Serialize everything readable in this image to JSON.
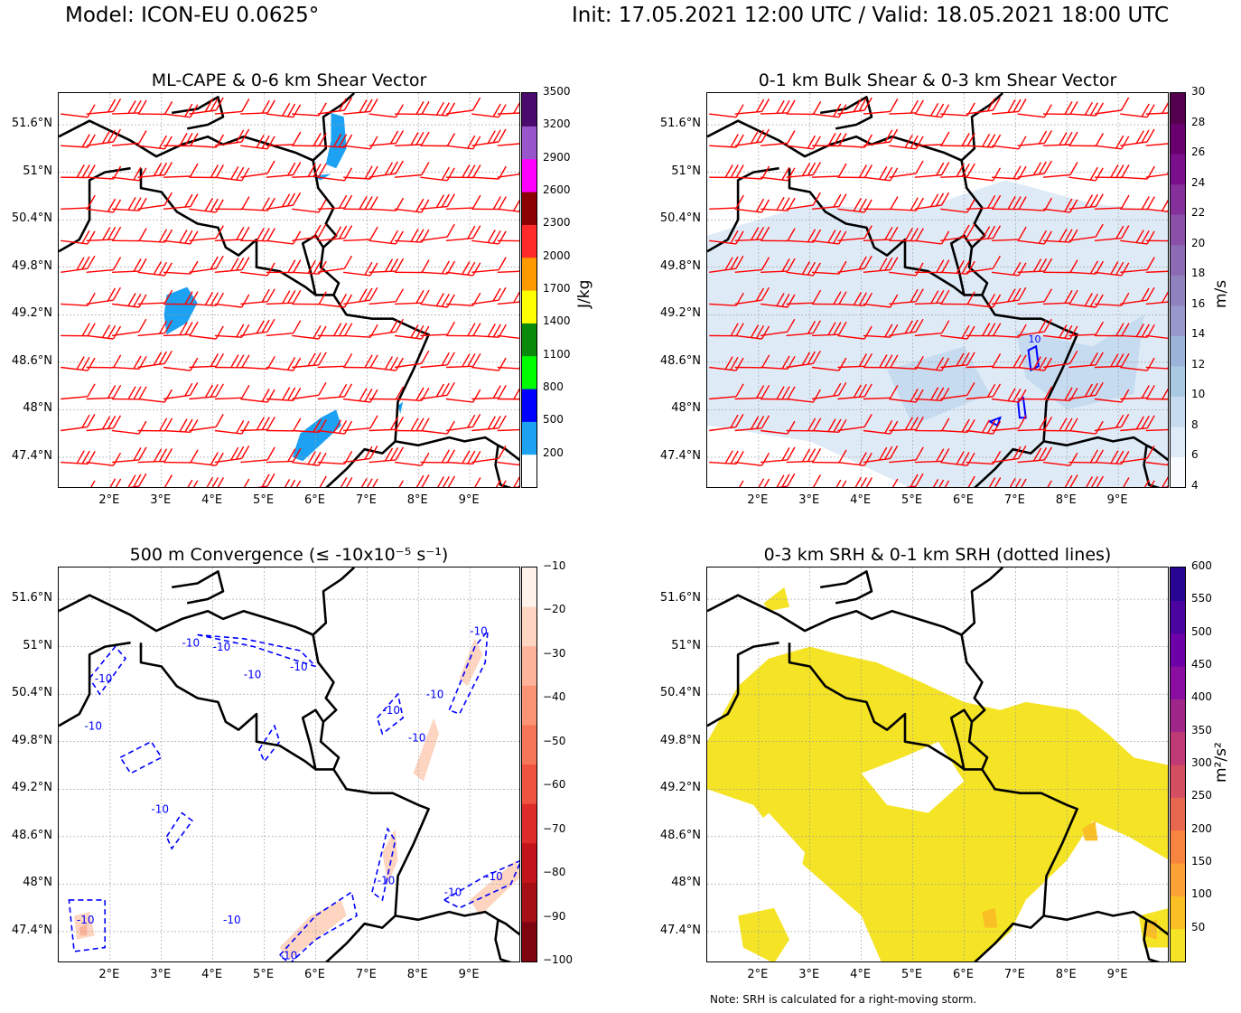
{
  "header": {
    "model": "Model: ICON-EU 0.0625°",
    "init_valid": "Init: 17.05.2021 12:00 UTC / Valid: 18.05.2021 18:00 UTC"
  },
  "note": "Note: SRH is calculated for a right-moving storm.",
  "chart_data": [
    {
      "type": "map",
      "title": "ML-CAPE & 0-6 km Shear Vector",
      "x_ticks": [
        "2°E",
        "3°E",
        "4°E",
        "5°E",
        "6°E",
        "7°E",
        "8°E",
        "9°E"
      ],
      "y_ticks": [
        "51.6°N",
        "51°N",
        "50.4°N",
        "49.8°N",
        "49.2°N",
        "48.6°N",
        "48°N",
        "47.4°N"
      ],
      "colorbar": {
        "label": "J/kg",
        "ticks": [
          "3500",
          "3200",
          "2900",
          "2600",
          "2300",
          "2000",
          "1700",
          "1400",
          "1100",
          "800",
          "500",
          "200"
        ],
        "colors": [
          "#ffffff",
          "#1da1f2",
          "#0000ff",
          "#00ff00",
          "#0a8a0a",
          "#ffff00",
          "#ff9900",
          "#ff2a2a",
          "#8b0000",
          "#ff00ff",
          "#9955cc",
          "#4b0a6e"
        ]
      },
      "overlay": "red wind barbs (0-6 km shear vector); light-blue CAPE areas 200-500 J/kg"
    },
    {
      "type": "map",
      "title": "0-1 km Bulk Shear & 0-3 km Shear Vector",
      "x_ticks": [
        "2°E",
        "3°E",
        "4°E",
        "5°E",
        "6°E",
        "7°E",
        "8°E",
        "9°E"
      ],
      "y_ticks": [
        "51.6°N",
        "51°N",
        "50.4°N",
        "49.8°N",
        "49.2°N",
        "48.6°N",
        "48°N",
        "47.4°N"
      ],
      "colorbar": {
        "label": "m/s",
        "ticks": [
          "30",
          "28",
          "26",
          "24",
          "22",
          "20",
          "18",
          "16",
          "14",
          "12",
          "10",
          "8",
          "6",
          "4"
        ],
        "colors": [
          "#f7fbff",
          "#deebf7",
          "#c6dbef",
          "#a9c8e2",
          "#9bb3d8",
          "#9898cc",
          "#8f82bf",
          "#8d6bb4",
          "#8a50a8",
          "#86309c",
          "#7a0f8c",
          "#6a0070",
          "#55004f"
        ]
      },
      "contour_label": "10",
      "overlay": "red wind barbs (0-3 km shear vector); blue contour 10 m/s"
    },
    {
      "type": "map",
      "title": "500 m Convergence (≤ -10x10⁻⁵ s⁻¹)",
      "x_ticks": [
        "2°E",
        "3°E",
        "4°E",
        "5°E",
        "6°E",
        "7°E",
        "8°E",
        "9°E"
      ],
      "y_ticks": [
        "51.6°N",
        "51°N",
        "50.4°N",
        "49.8°N",
        "49.2°N",
        "48.6°N",
        "48°N",
        "47.4°N"
      ],
      "colorbar": {
        "label": "",
        "ticks": [
          "−10",
          "−20",
          "−30",
          "−40",
          "−50",
          "−60",
          "−70",
          "−80",
          "−90",
          "−100"
        ],
        "colors": [
          "#fff2ea",
          "#fdd5c0",
          "#fcb39a",
          "#fb9474",
          "#f67659",
          "#ee5440",
          "#dd2c2a",
          "#c3141c",
          "#a50f15",
          "#7e0510"
        ]
      },
      "contour_label": "-10",
      "overlay": "dashed blue -10 contours"
    },
    {
      "type": "map",
      "title": "0-3 km SRH & 0-1 km SRH (dotted lines)",
      "x_ticks": [
        "2°E",
        "3°E",
        "4°E",
        "5°E",
        "6°E",
        "7°E",
        "8°E",
        "9°E"
      ],
      "y_ticks": [
        "51.6°N",
        "51°N",
        "50.4°N",
        "49.8°N",
        "49.2°N",
        "48.6°N",
        "48°N",
        "47.4°N"
      ],
      "colorbar": {
        "label": "m²/s²",
        "ticks": [
          "600",
          "550",
          "500",
          "450",
          "400",
          "350",
          "300",
          "250",
          "200",
          "150",
          "100",
          "50"
        ],
        "colors": [
          "#f5e425",
          "#fbbf26",
          "#fca136",
          "#f8853f",
          "#e8684f",
          "#d44e61",
          "#bf3a74",
          "#a1268a",
          "#8a0ea0",
          "#6c02a8",
          "#4b04a0",
          "#280592"
        ]
      },
      "overlay": "yellow SRH 50-100 m²/s² areas"
    }
  ]
}
